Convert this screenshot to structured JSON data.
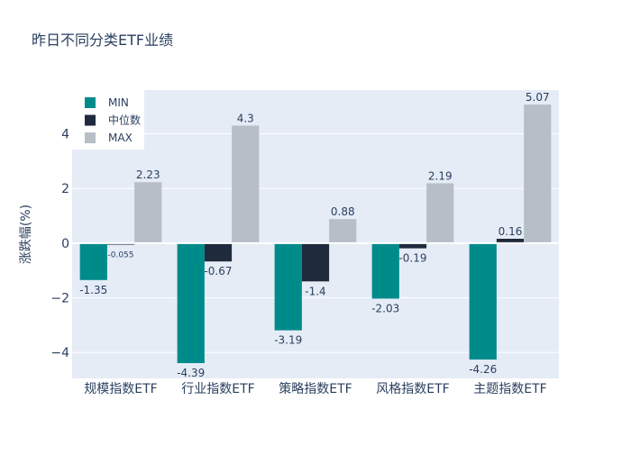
{
  "chart_data": {
    "type": "bar",
    "title": "昨日不同分类ETF业绩",
    "xlabel": "",
    "ylabel": "涨跌幅(%)",
    "categories": [
      "规模指数ETF",
      "行业指数ETF",
      "策略指数ETF",
      "风格指数ETF",
      "主题指数ETF"
    ],
    "series": [
      {
        "name": "MIN",
        "color": "#008b8b",
        "values": [
          -1.35,
          -4.39,
          -3.19,
          -2.03,
          -4.26
        ],
        "labels": [
          "-1.35",
          "-4.39",
          "-3.19",
          "-2.03",
          "-4.26"
        ]
      },
      {
        "name": "中位数",
        "color": "#1f2a3c",
        "values": [
          -0.055,
          -0.67,
          -1.4,
          -0.19,
          0.16
        ],
        "labels": [
          "-0.055",
          "-0.67",
          "-1.4",
          "-0.19",
          "0.16"
        ]
      },
      {
        "name": "MAX",
        "color": "#b7bec7",
        "values": [
          2.23,
          4.3,
          0.88,
          2.19,
          5.07
        ],
        "labels": [
          "2.23",
          "4.3",
          "0.88",
          "2.19",
          "5.07"
        ]
      }
    ],
    "yticks": [
      -4,
      -2,
      0,
      2,
      4
    ],
    "ytick_labels": [
      "−4",
      "−2",
      "0",
      "2",
      "4"
    ],
    "ylim": [
      -4.95,
      5.6
    ],
    "grid": true,
    "legend_position": "top-left",
    "colors": {
      "plot_background": "#e5ecf6",
      "grid": "#ffffff",
      "text": "#2a3f5f"
    }
  }
}
